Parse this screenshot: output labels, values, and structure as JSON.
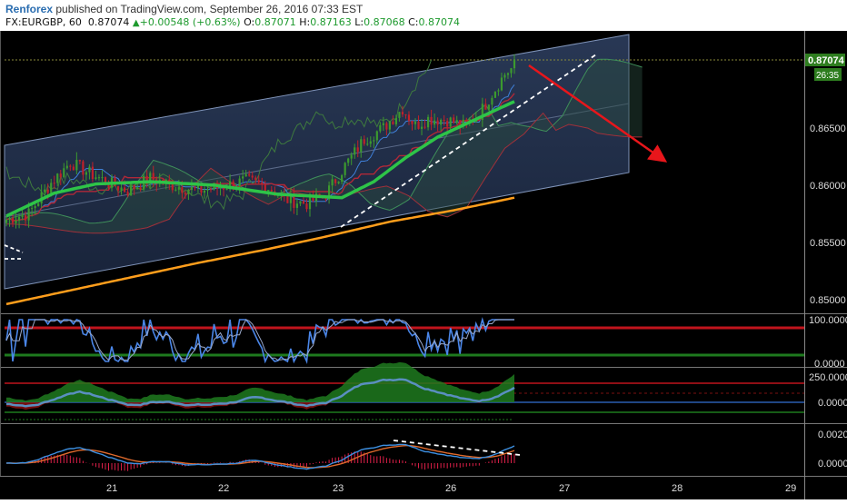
{
  "header": {
    "author": "Renforex",
    "published_text": "published on TradingView.com, September 26, 2016 07:33 EST",
    "symbol": "FX:EURGBP, 60",
    "last": "0.87074",
    "change": "+0.00548 (+0.63%)",
    "o_label": "O:",
    "o_value": "0.87071",
    "h_label": "H:",
    "h_value": "0.87163",
    "l_label": "L:",
    "l_value": "0.87068",
    "c_label": "C:",
    "c_value": "0.87074"
  },
  "colors": {
    "background": "#000000",
    "candle_up": "#3c9a2e",
    "candle_down": "#c0202a",
    "ma_green": "#2ec448",
    "ma_orange": "#ff9e1c",
    "arrow_red": "#e8161b",
    "level_red": "#c0141c",
    "level_green": "#1e7a1e",
    "stoch_blue": "#4a86e8",
    "macd_blue": "#3d8fe0",
    "macd_orange": "#e06a2c"
  },
  "chart_data": [
    {
      "type": "candlestick",
      "panel": "price",
      "symbol": "EURGBP",
      "timeframe": "60",
      "x_ticks": [
        "21",
        "22",
        "23",
        "26",
        "27",
        "28",
        "29"
      ],
      "y_ticks": [
        "0.86500",
        "0.86000",
        "0.85500",
        "0.85000"
      ],
      "ylim": [
        0.8465,
        0.8728
      ],
      "price_label": "0.87074",
      "countdown_label": "26:35",
      "close_anchor_points": [
        [
          0,
          0.8568
        ],
        [
          7,
          0.8573
        ],
        [
          14,
          0.86
        ],
        [
          20,
          0.8618
        ],
        [
          25,
          0.861
        ],
        [
          32,
          0.86
        ],
        [
          38,
          0.8593
        ],
        [
          45,
          0.8604
        ],
        [
          52,
          0.8598
        ],
        [
          60,
          0.8593
        ],
        [
          68,
          0.8597
        ],
        [
          75,
          0.8602
        ],
        [
          82,
          0.8596
        ],
        [
          88,
          0.8585
        ],
        [
          94,
          0.8582
        ],
        [
          100,
          0.859
        ],
        [
          106,
          0.8615
        ],
        [
          112,
          0.8638
        ],
        [
          118,
          0.8648
        ],
        [
          124,
          0.8665
        ],
        [
          128,
          0.865
        ],
        [
          132,
          0.8656
        ],
        [
          138,
          0.8655
        ],
        [
          143,
          0.865
        ],
        [
          148,
          0.866
        ],
        [
          152,
          0.8678
        ],
        [
          156,
          0.8695
        ],
        [
          159,
          0.8702
        ]
      ],
      "moving_averages": [
        {
          "name": "fast",
          "color": "#2ec448",
          "points": [
            [
              0,
              0.8571
            ],
            [
              15,
              0.8591
            ],
            [
              28,
              0.8599
            ],
            [
              45,
              0.8601
            ],
            [
              65,
              0.8598
            ],
            [
              85,
              0.859
            ],
            [
              105,
              0.8587
            ],
            [
              115,
              0.8601
            ],
            [
              125,
              0.8622
            ],
            [
              135,
              0.864
            ],
            [
              145,
              0.8653
            ],
            [
              155,
              0.8666
            ],
            [
              159,
              0.8671
            ]
          ]
        },
        {
          "name": "slow",
          "color": "#ff9e1c",
          "points": [
            [
              0,
              0.8494
            ],
            [
              20,
              0.8506
            ],
            [
              40,
              0.8518
            ],
            [
              60,
              0.853
            ],
            [
              80,
              0.8541
            ],
            [
              100,
              0.8553
            ],
            [
              120,
              0.8566
            ],
            [
              140,
              0.8576
            ],
            [
              159,
              0.8587
            ]
          ]
        }
      ]
    },
    {
      "type": "line",
      "panel": "stochastic",
      "y_ticks": [
        "100.0000",
        "0.0000"
      ],
      "ylim": [
        0,
        100
      ],
      "levels": [
        80,
        20
      ]
    },
    {
      "type": "area",
      "panel": "oscillator",
      "y_ticks": [
        "250.0000",
        "0.0000"
      ],
      "ylim": [
        -210,
        330
      ],
      "levels": [
        140,
        -110
      ]
    },
    {
      "type": "line",
      "panel": "macd",
      "y_ticks": [
        "0.0020",
        "0.0000"
      ],
      "ylim": [
        -0.0012,
        0.0027
      ]
    }
  ]
}
